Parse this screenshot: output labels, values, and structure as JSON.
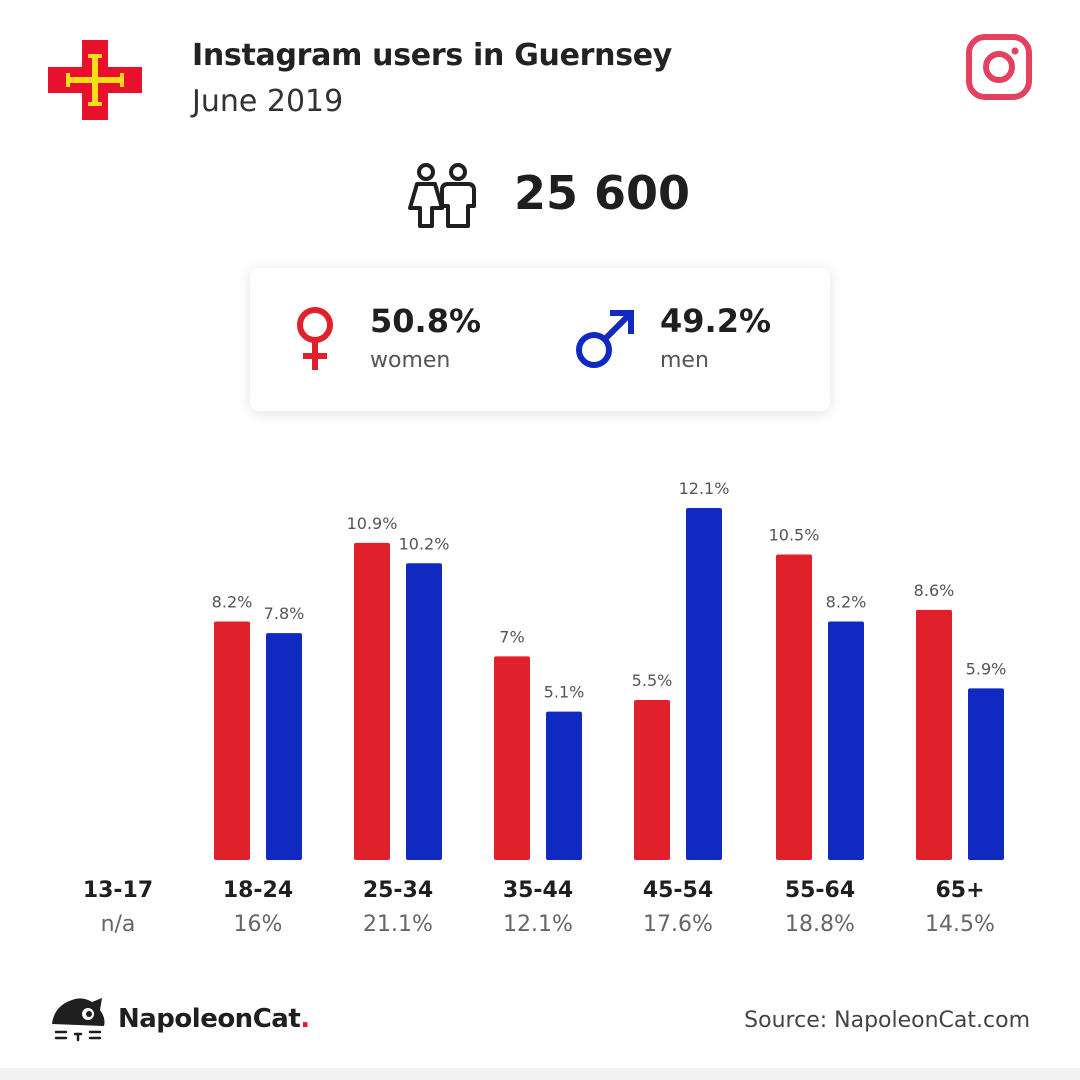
{
  "header": {
    "title": "Instagram users in Guernsey",
    "subtitle": "June 2019",
    "flag_icon": "guernsey-flag",
    "platform_icon": "instagram-logo-icon"
  },
  "summary": {
    "users_icon": "users-icon",
    "total_users": "25 600"
  },
  "gender": {
    "women": {
      "value": "50.8%",
      "label": "women",
      "icon": "female-icon"
    },
    "men": {
      "value": "49.2%",
      "label": "men",
      "icon": "male-icon"
    }
  },
  "colors": {
    "women": "#e0202a",
    "men": "#0f29c1",
    "instagram": "#e4405f",
    "flag_red": "#e8112d",
    "flag_yellow": "#f9dd16"
  },
  "chart_data": {
    "type": "bar",
    "categories": [
      "13-17",
      "18-24",
      "25-34",
      "35-44",
      "45-54",
      "55-64",
      "65+"
    ],
    "category_shares": [
      "n/a",
      "16%",
      "21.1%",
      "12.1%",
      "17.6%",
      "18.8%",
      "14.5%"
    ],
    "series": [
      {
        "name": "women",
        "values": [
          null,
          8.2,
          10.9,
          7,
          5.5,
          10.5,
          8.6
        ],
        "labels": [
          "",
          "8.2%",
          "10.9%",
          "7%",
          "5.5%",
          "10.5%",
          "8.6%"
        ]
      },
      {
        "name": "men",
        "values": [
          null,
          7.8,
          10.2,
          5.1,
          12.1,
          8.2,
          5.9
        ],
        "labels": [
          "",
          "7.8%",
          "10.2%",
          "5.1%",
          "12.1%",
          "8.2%",
          "5.9%"
        ]
      }
    ],
    "ylim": [
      0,
      12.1
    ],
    "grid": false,
    "legend": "none"
  },
  "footer": {
    "brand_name": "NapoleonCat",
    "brand_dot": ".",
    "brand_icon": "napoleoncat-logo-icon",
    "source": "Source: NapoleonCat.com"
  }
}
